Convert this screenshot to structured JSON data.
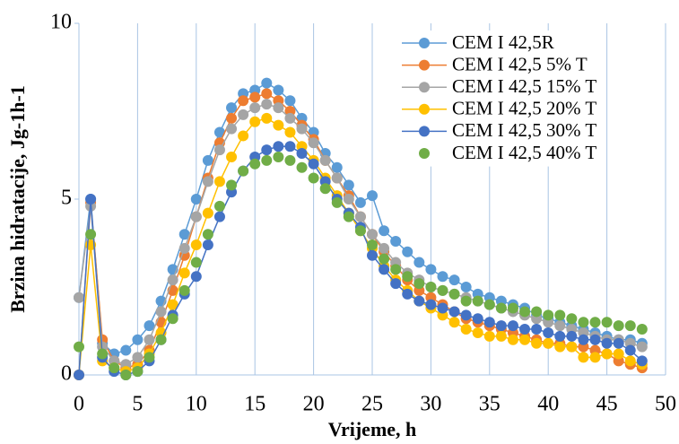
{
  "chart_data": {
    "type": "line",
    "y_label": "Brzina hidratacije, Jg-1h-1",
    "x_label": "Vrijeme, h",
    "x": [
      0,
      1,
      2,
      3,
      4,
      5,
      6,
      7,
      8,
      9,
      10,
      11,
      12,
      13,
      14,
      15,
      16,
      17,
      18,
      19,
      20,
      21,
      22,
      23,
      24,
      25,
      26,
      27,
      28,
      29,
      30,
      31,
      32,
      33,
      34,
      35,
      36,
      37,
      38,
      39,
      40,
      41,
      42,
      43,
      44,
      45,
      46,
      47,
      48
    ],
    "xlim": [
      0,
      50
    ],
    "xticks": [
      0,
      5,
      10,
      15,
      20,
      25,
      30,
      35,
      40,
      45,
      50
    ],
    "ylim": [
      0,
      10
    ],
    "yticks": [
      0,
      5,
      10
    ],
    "grid": "x",
    "legend": "upper right",
    "series": [
      {
        "name": "CEM I 42,5R",
        "color": "#5b9bd5",
        "line": true,
        "values": [
          2.2,
          5.0,
          0.9,
          0.6,
          0.7,
          1.0,
          1.4,
          2.1,
          3.0,
          4.0,
          5.0,
          6.1,
          6.9,
          7.6,
          8.0,
          8.1,
          8.3,
          8.1,
          7.8,
          7.3,
          6.9,
          6.3,
          5.9,
          5.4,
          4.9,
          5.1,
          4.1,
          3.8,
          3.5,
          3.2,
          3.0,
          2.8,
          2.7,
          2.5,
          2.3,
          2.2,
          2.1,
          2.0,
          1.9,
          1.7,
          1.6,
          1.5,
          1.4,
          1.3,
          1.2,
          1.1,
          1.0,
          1.0,
          0.9
        ]
      },
      {
        "name": "CEM I 42,5 5% T",
        "color": "#ed7d31",
        "line": true,
        "values": [
          0,
          4.9,
          1.0,
          0.4,
          0.2,
          0.3,
          0.7,
          1.5,
          2.4,
          3.4,
          4.5,
          5.6,
          6.6,
          7.3,
          7.8,
          7.9,
          8.0,
          7.8,
          7.5,
          7.1,
          6.7,
          6.1,
          5.6,
          5.1,
          4.5,
          4.0,
          3.5,
          3.1,
          2.7,
          2.4,
          2.2,
          2.0,
          1.8,
          1.6,
          1.5,
          1.4,
          1.3,
          1.2,
          1.1,
          1.0,
          0.9,
          0.9,
          0.8,
          0.8,
          0.7,
          0.6,
          0.4,
          0.3,
          0.2
        ]
      },
      {
        "name": "CEM I 42,5 15% T",
        "color": "#a5a5a5",
        "line": true,
        "values": [
          2.2,
          4.8,
          0.8,
          0.4,
          0.3,
          0.5,
          1.0,
          1.8,
          2.7,
          3.6,
          4.5,
          5.5,
          6.4,
          7.0,
          7.4,
          7.6,
          7.7,
          7.6,
          7.3,
          7.0,
          6.6,
          6.1,
          5.6,
          5.0,
          4.5,
          4.0,
          3.6,
          3.2,
          2.9,
          2.7,
          2.5,
          2.4,
          2.3,
          2.2,
          2.1,
          2.0,
          1.9,
          1.8,
          1.7,
          1.6,
          1.5,
          1.4,
          1.3,
          1.2,
          1.1,
          1.0,
          1.0,
          0.9,
          0.8
        ]
      },
      {
        "name": "CEM I 42,5 20% T",
        "color": "#ffc000",
        "line": true,
        "values": [
          0,
          3.7,
          0.4,
          0.2,
          0.1,
          0.2,
          0.6,
          1.2,
          2.0,
          2.9,
          3.7,
          4.6,
          5.5,
          6.2,
          6.8,
          7.2,
          7.3,
          7.1,
          6.9,
          6.5,
          6.1,
          5.6,
          5.1,
          4.6,
          4.1,
          3.6,
          3.1,
          2.7,
          2.4,
          2.1,
          1.9,
          1.7,
          1.5,
          1.3,
          1.2,
          1.1,
          1.1,
          1.0,
          1.0,
          0.9,
          0.9,
          0.8,
          0.8,
          0.5,
          0.5,
          0.6,
          0.6,
          0.4,
          0.3
        ]
      },
      {
        "name": "CEM I 42,5 30% T",
        "color": "#4472c4",
        "line": true,
        "values": [
          0,
          5.0,
          0.5,
          0.1,
          0.0,
          0.1,
          0.4,
          1.0,
          1.7,
          2.3,
          2.8,
          3.7,
          4.5,
          5.2,
          5.8,
          6.2,
          6.4,
          6.5,
          6.5,
          6.3,
          6.0,
          5.5,
          5.0,
          4.6,
          4.2,
          3.4,
          3.0,
          2.6,
          2.3,
          2.1,
          2.0,
          1.9,
          1.8,
          1.7,
          1.6,
          1.5,
          1.4,
          1.4,
          1.3,
          1.3,
          1.2,
          1.1,
          1.1,
          1.0,
          1.0,
          0.9,
          0.9,
          0.7,
          0.4
        ]
      },
      {
        "name": "CEM I 42,5 40% T",
        "color": "#70ad47",
        "line": false,
        "values": [
          0.8,
          4.0,
          0.6,
          0.2,
          0.0,
          0.1,
          0.5,
          1.0,
          1.6,
          2.4,
          3.2,
          4.0,
          4.8,
          5.4,
          5.8,
          6.0,
          6.1,
          6.2,
          6.1,
          5.9,
          5.6,
          5.3,
          4.9,
          4.5,
          4.1,
          3.7,
          3.3,
          3.0,
          2.8,
          2.6,
          2.5,
          2.4,
          2.3,
          2.1,
          2.1,
          2.0,
          1.9,
          1.9,
          1.8,
          1.8,
          1.7,
          1.7,
          1.6,
          1.5,
          1.5,
          1.5,
          1.4,
          1.4,
          1.3
        ]
      }
    ]
  }
}
